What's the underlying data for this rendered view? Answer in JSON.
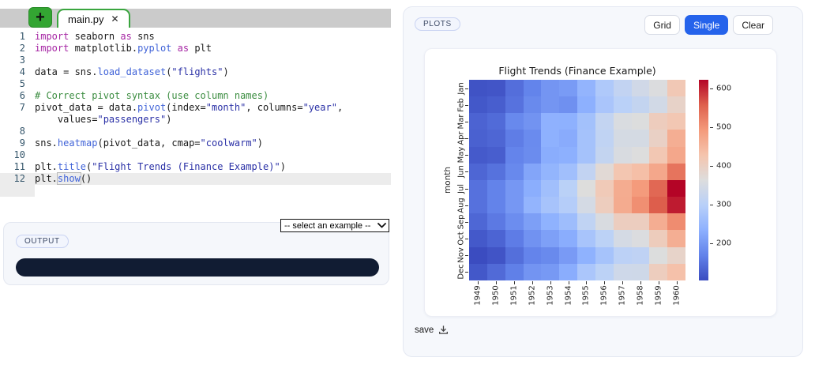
{
  "editor": {
    "tabbar": {
      "new_tab_label": "+",
      "tab_name": "main.py",
      "tab_close_label": "✕"
    },
    "code_lines": [
      {
        "num": "1",
        "tokens": [
          {
            "c": "kw",
            "t": "import"
          },
          {
            "c": "pl",
            "t": " seaborn "
          },
          {
            "c": "kw",
            "t": "as"
          },
          {
            "c": "pl",
            "t": " sns"
          }
        ]
      },
      {
        "num": "2",
        "tokens": [
          {
            "c": "kw",
            "t": "import"
          },
          {
            "c": "pl",
            "t": " matplotlib."
          },
          {
            "c": "fn",
            "t": "pyplot"
          },
          {
            "c": "pl",
            "t": " "
          },
          {
            "c": "kw",
            "t": "as"
          },
          {
            "c": "pl",
            "t": " plt"
          }
        ]
      },
      {
        "num": "3",
        "tokens": []
      },
      {
        "num": "4",
        "tokens": [
          {
            "c": "pl",
            "t": "data = sns."
          },
          {
            "c": "fn",
            "t": "load_dataset"
          },
          {
            "c": "pl",
            "t": "("
          },
          {
            "c": "str",
            "t": "\"flights\""
          },
          {
            "c": "pl",
            "t": ")"
          }
        ]
      },
      {
        "num": "5",
        "tokens": []
      },
      {
        "num": "6",
        "tokens": [
          {
            "c": "cm",
            "t": "# Correct pivot syntax (use column names)"
          }
        ]
      },
      {
        "num": "7",
        "tokens": [
          {
            "c": "pl",
            "t": "pivot_data = data."
          },
          {
            "c": "fn",
            "t": "pivot"
          },
          {
            "c": "pl",
            "t": "(index="
          },
          {
            "c": "str",
            "t": "\"month\""
          },
          {
            "c": "pl",
            "t": ", columns="
          },
          {
            "c": "str",
            "t": "\"year\""
          },
          {
            "c": "pl",
            "t": ","
          }
        ]
      },
      {
        "num": "",
        "tokens": [
          {
            "c": "pl",
            "t": "    values="
          },
          {
            "c": "str",
            "t": "\"passengers\""
          },
          {
            "c": "pl",
            "t": ")"
          }
        ]
      },
      {
        "num": "8",
        "tokens": []
      },
      {
        "num": "9",
        "tokens": [
          {
            "c": "pl",
            "t": "sns."
          },
          {
            "c": "fn",
            "t": "heatmap"
          },
          {
            "c": "pl",
            "t": "(pivot_data, cmap="
          },
          {
            "c": "str",
            "t": "\"coolwarm\""
          },
          {
            "c": "pl",
            "t": ")"
          }
        ]
      },
      {
        "num": "10",
        "tokens": []
      },
      {
        "num": "11",
        "tokens": [
          {
            "c": "pl",
            "t": "plt."
          },
          {
            "c": "fn",
            "t": "title"
          },
          {
            "c": "pl",
            "t": "("
          },
          {
            "c": "str",
            "t": "\"Flight Trends (Finance Example)\""
          },
          {
            "c": "pl",
            "t": ")"
          }
        ]
      },
      {
        "num": "12",
        "hl": true,
        "tokens": [
          {
            "c": "pl",
            "t": "plt."
          },
          {
            "c": "fn",
            "t": "show",
            "boxed": true
          },
          {
            "c": "pl",
            "t": "()"
          }
        ]
      }
    ]
  },
  "output_panel": {
    "badge": "OUTPUT"
  },
  "example_select": {
    "value": "-- select an example --"
  },
  "plots_panel": {
    "badge": "PLOTS",
    "buttons": [
      {
        "label": "Grid",
        "active": false
      },
      {
        "label": "Single",
        "active": true
      },
      {
        "label": "Clear",
        "active": false
      }
    ],
    "save_label": "save"
  },
  "chart_data": {
    "type": "heatmap",
    "title": "Flight Trends (Finance Example)",
    "ylabel": "month",
    "xlabel": "",
    "rows": [
      "Jan",
      "Feb",
      "Mar",
      "Apr",
      "May",
      "Jun",
      "Jul",
      "Aug",
      "Sep",
      "Oct",
      "Nov",
      "Dec"
    ],
    "cols": [
      "1949",
      "1950",
      "1951",
      "1952",
      "1953",
      "1954",
      "1955",
      "1956",
      "1957",
      "1958",
      "1959",
      "1960"
    ],
    "values": [
      [
        112,
        115,
        145,
        171,
        196,
        204,
        242,
        284,
        315,
        340,
        360,
        417
      ],
      [
        118,
        126,
        150,
        180,
        196,
        188,
        233,
        277,
        301,
        318,
        342,
        391
      ],
      [
        132,
        141,
        178,
        193,
        236,
        235,
        267,
        317,
        356,
        362,
        406,
        419
      ],
      [
        129,
        135,
        163,
        181,
        235,
        227,
        269,
        313,
        348,
        348,
        396,
        461
      ],
      [
        121,
        125,
        172,
        183,
        229,
        234,
        270,
        318,
        355,
        363,
        420,
        472
      ],
      [
        135,
        149,
        178,
        218,
        243,
        264,
        315,
        374,
        422,
        435,
        472,
        535
      ],
      [
        148,
        170,
        199,
        230,
        264,
        302,
        364,
        413,
        465,
        491,
        548,
        622
      ],
      [
        148,
        170,
        199,
        242,
        272,
        293,
        347,
        405,
        467,
        505,
        559,
        606
      ],
      [
        136,
        158,
        184,
        209,
        237,
        259,
        312,
        355,
        404,
        404,
        463,
        508
      ],
      [
        119,
        133,
        162,
        191,
        211,
        229,
        274,
        306,
        347,
        359,
        407,
        461
      ],
      [
        104,
        114,
        146,
        172,
        180,
        203,
        237,
        271,
        305,
        310,
        362,
        390
      ],
      [
        118,
        140,
        166,
        194,
        201,
        229,
        278,
        306,
        336,
        337,
        405,
        432
      ]
    ],
    "vmin": 104,
    "vmax": 622,
    "colormap": "coolwarm",
    "colorbar_ticks": [
      200,
      300,
      400,
      500,
      600
    ],
    "legend_position": "right-colorbar",
    "grid": false
  },
  "colors": {
    "accent_blue": "#2563eb",
    "console_bg": "#111c33",
    "tab_green": "#33a532",
    "keyword": "#a626a4",
    "function_name": "#4063d8",
    "string": "#2a30a6",
    "comment": "#3a8c3f",
    "coolwarm_min": "#3b4cc0",
    "coolwarm_mid": "#dddddd",
    "coolwarm_max": "#b40426"
  }
}
